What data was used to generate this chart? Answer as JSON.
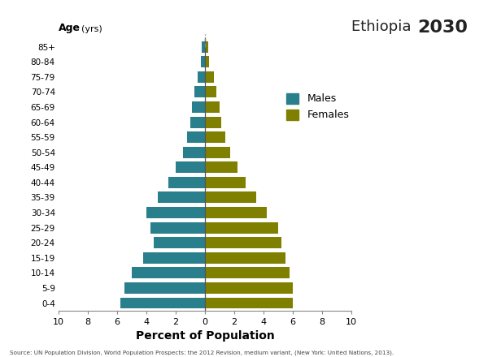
{
  "age_groups": [
    "0-4",
    "5-9",
    "10-14",
    "15-19",
    "20-24",
    "25-29",
    "30-34",
    "35-39",
    "40-44",
    "45-49",
    "50-54",
    "55-59",
    "60-64",
    "65-69",
    "70-74",
    "75-79",
    "80-84",
    "85+"
  ],
  "males": [
    5.8,
    5.5,
    5.0,
    4.2,
    3.5,
    3.7,
    4.0,
    3.2,
    2.5,
    2.0,
    1.5,
    1.2,
    1.0,
    0.9,
    0.7,
    0.5,
    0.3,
    0.2
  ],
  "females": [
    6.0,
    6.0,
    5.8,
    5.5,
    5.2,
    5.0,
    4.2,
    3.5,
    2.8,
    2.2,
    1.7,
    1.4,
    1.1,
    1.0,
    0.8,
    0.6,
    0.3,
    0.2
  ],
  "male_color": "#2a7f8c",
  "female_color": "#808000",
  "title_ethiopia": "Ethiopia ",
  "title_year": "2030",
  "xlabel": "Percent of Population",
  "xlim": 10,
  "source": "Source: UN Population Division, World Population Prospects: the 2012 Revision, medium variant, (New York: United Nations, 2013).",
  "background_color": "#ffffff"
}
